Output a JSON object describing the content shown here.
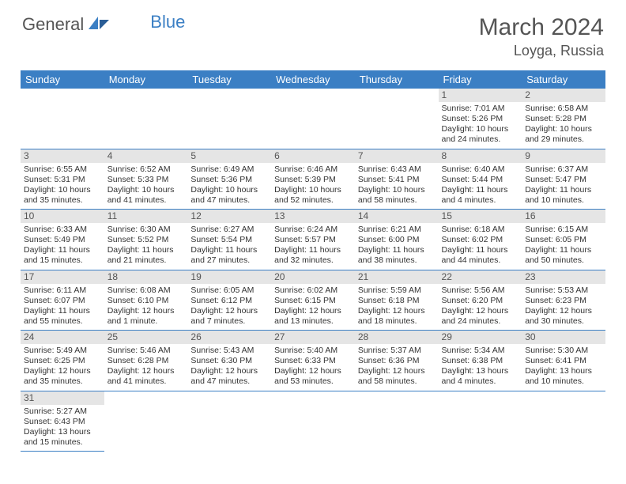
{
  "brand": {
    "part1": "General",
    "part2": "Blue"
  },
  "title": "March 2024",
  "location": "Loyga, Russia",
  "colors": {
    "header_bg": "#3b7fc4",
    "daynum_bg": "#e5e5e5",
    "text": "#333"
  },
  "weekdays": [
    "Sunday",
    "Monday",
    "Tuesday",
    "Wednesday",
    "Thursday",
    "Friday",
    "Saturday"
  ],
  "weeks": [
    [
      null,
      null,
      null,
      null,
      null,
      {
        "d": "1",
        "sr": "Sunrise: 7:01 AM",
        "ss": "Sunset: 5:26 PM",
        "dl1": "Daylight: 10 hours",
        "dl2": "and 24 minutes."
      },
      {
        "d": "2",
        "sr": "Sunrise: 6:58 AM",
        "ss": "Sunset: 5:28 PM",
        "dl1": "Daylight: 10 hours",
        "dl2": "and 29 minutes."
      }
    ],
    [
      {
        "d": "3",
        "sr": "Sunrise: 6:55 AM",
        "ss": "Sunset: 5:31 PM",
        "dl1": "Daylight: 10 hours",
        "dl2": "and 35 minutes."
      },
      {
        "d": "4",
        "sr": "Sunrise: 6:52 AM",
        "ss": "Sunset: 5:33 PM",
        "dl1": "Daylight: 10 hours",
        "dl2": "and 41 minutes."
      },
      {
        "d": "5",
        "sr": "Sunrise: 6:49 AM",
        "ss": "Sunset: 5:36 PM",
        "dl1": "Daylight: 10 hours",
        "dl2": "and 47 minutes."
      },
      {
        "d": "6",
        "sr": "Sunrise: 6:46 AM",
        "ss": "Sunset: 5:39 PM",
        "dl1": "Daylight: 10 hours",
        "dl2": "and 52 minutes."
      },
      {
        "d": "7",
        "sr": "Sunrise: 6:43 AM",
        "ss": "Sunset: 5:41 PM",
        "dl1": "Daylight: 10 hours",
        "dl2": "and 58 minutes."
      },
      {
        "d": "8",
        "sr": "Sunrise: 6:40 AM",
        "ss": "Sunset: 5:44 PM",
        "dl1": "Daylight: 11 hours",
        "dl2": "and 4 minutes."
      },
      {
        "d": "9",
        "sr": "Sunrise: 6:37 AM",
        "ss": "Sunset: 5:47 PM",
        "dl1": "Daylight: 11 hours",
        "dl2": "and 10 minutes."
      }
    ],
    [
      {
        "d": "10",
        "sr": "Sunrise: 6:33 AM",
        "ss": "Sunset: 5:49 PM",
        "dl1": "Daylight: 11 hours",
        "dl2": "and 15 minutes."
      },
      {
        "d": "11",
        "sr": "Sunrise: 6:30 AM",
        "ss": "Sunset: 5:52 PM",
        "dl1": "Daylight: 11 hours",
        "dl2": "and 21 minutes."
      },
      {
        "d": "12",
        "sr": "Sunrise: 6:27 AM",
        "ss": "Sunset: 5:54 PM",
        "dl1": "Daylight: 11 hours",
        "dl2": "and 27 minutes."
      },
      {
        "d": "13",
        "sr": "Sunrise: 6:24 AM",
        "ss": "Sunset: 5:57 PM",
        "dl1": "Daylight: 11 hours",
        "dl2": "and 32 minutes."
      },
      {
        "d": "14",
        "sr": "Sunrise: 6:21 AM",
        "ss": "Sunset: 6:00 PM",
        "dl1": "Daylight: 11 hours",
        "dl2": "and 38 minutes."
      },
      {
        "d": "15",
        "sr": "Sunrise: 6:18 AM",
        "ss": "Sunset: 6:02 PM",
        "dl1": "Daylight: 11 hours",
        "dl2": "and 44 minutes."
      },
      {
        "d": "16",
        "sr": "Sunrise: 6:15 AM",
        "ss": "Sunset: 6:05 PM",
        "dl1": "Daylight: 11 hours",
        "dl2": "and 50 minutes."
      }
    ],
    [
      {
        "d": "17",
        "sr": "Sunrise: 6:11 AM",
        "ss": "Sunset: 6:07 PM",
        "dl1": "Daylight: 11 hours",
        "dl2": "and 55 minutes."
      },
      {
        "d": "18",
        "sr": "Sunrise: 6:08 AM",
        "ss": "Sunset: 6:10 PM",
        "dl1": "Daylight: 12 hours",
        "dl2": "and 1 minute."
      },
      {
        "d": "19",
        "sr": "Sunrise: 6:05 AM",
        "ss": "Sunset: 6:12 PM",
        "dl1": "Daylight: 12 hours",
        "dl2": "and 7 minutes."
      },
      {
        "d": "20",
        "sr": "Sunrise: 6:02 AM",
        "ss": "Sunset: 6:15 PM",
        "dl1": "Daylight: 12 hours",
        "dl2": "and 13 minutes."
      },
      {
        "d": "21",
        "sr": "Sunrise: 5:59 AM",
        "ss": "Sunset: 6:18 PM",
        "dl1": "Daylight: 12 hours",
        "dl2": "and 18 minutes."
      },
      {
        "d": "22",
        "sr": "Sunrise: 5:56 AM",
        "ss": "Sunset: 6:20 PM",
        "dl1": "Daylight: 12 hours",
        "dl2": "and 24 minutes."
      },
      {
        "d": "23",
        "sr": "Sunrise: 5:53 AM",
        "ss": "Sunset: 6:23 PM",
        "dl1": "Daylight: 12 hours",
        "dl2": "and 30 minutes."
      }
    ],
    [
      {
        "d": "24",
        "sr": "Sunrise: 5:49 AM",
        "ss": "Sunset: 6:25 PM",
        "dl1": "Daylight: 12 hours",
        "dl2": "and 35 minutes."
      },
      {
        "d": "25",
        "sr": "Sunrise: 5:46 AM",
        "ss": "Sunset: 6:28 PM",
        "dl1": "Daylight: 12 hours",
        "dl2": "and 41 minutes."
      },
      {
        "d": "26",
        "sr": "Sunrise: 5:43 AM",
        "ss": "Sunset: 6:30 PM",
        "dl1": "Daylight: 12 hours",
        "dl2": "and 47 minutes."
      },
      {
        "d": "27",
        "sr": "Sunrise: 5:40 AM",
        "ss": "Sunset: 6:33 PM",
        "dl1": "Daylight: 12 hours",
        "dl2": "and 53 minutes."
      },
      {
        "d": "28",
        "sr": "Sunrise: 5:37 AM",
        "ss": "Sunset: 6:36 PM",
        "dl1": "Daylight: 12 hours",
        "dl2": "and 58 minutes."
      },
      {
        "d": "29",
        "sr": "Sunrise: 5:34 AM",
        "ss": "Sunset: 6:38 PM",
        "dl1": "Daylight: 13 hours",
        "dl2": "and 4 minutes."
      },
      {
        "d": "30",
        "sr": "Sunrise: 5:30 AM",
        "ss": "Sunset: 6:41 PM",
        "dl1": "Daylight: 13 hours",
        "dl2": "and 10 minutes."
      }
    ],
    [
      {
        "d": "31",
        "sr": "Sunrise: 5:27 AM",
        "ss": "Sunset: 6:43 PM",
        "dl1": "Daylight: 13 hours",
        "dl2": "and 15 minutes."
      },
      null,
      null,
      null,
      null,
      null,
      null
    ]
  ]
}
